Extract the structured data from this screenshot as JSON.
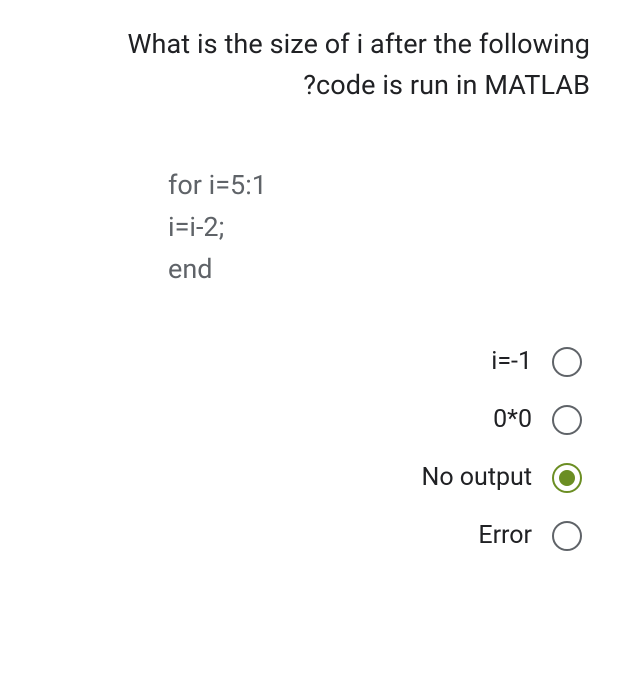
{
  "question": {
    "line1": "What is the size of i after the following",
    "line2": "?code is run in MATLAB"
  },
  "code": {
    "line1": "for i=5:1",
    "line2": "i=i-2;",
    "line3": "end"
  },
  "options": [
    {
      "label": "i=-1",
      "selected": false
    },
    {
      "label": "0*0",
      "selected": false
    },
    {
      "label": "No output",
      "selected": true
    },
    {
      "label": "Error",
      "selected": false
    }
  ],
  "colors": {
    "text_primary": "#202124",
    "text_secondary": "#5f6368",
    "radio_border": "#5f6368",
    "radio_selected": "#6b8e23",
    "background": "#ffffff"
  },
  "fonts": {
    "question_size": 27,
    "code_size": 27,
    "option_size": 25
  }
}
